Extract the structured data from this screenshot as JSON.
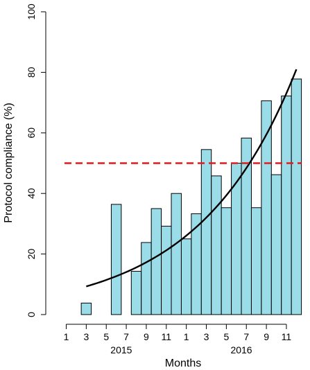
{
  "chart_data": {
    "type": "bar",
    "title": "",
    "xlabel": "Months",
    "ylabel": "Protocol compliance (%)",
    "ylim": [
      0,
      100
    ],
    "yticks": [
      0,
      20,
      40,
      60,
      80,
      100
    ],
    "months": [
      1,
      2,
      3,
      4,
      5,
      6,
      7,
      8,
      9,
      10,
      11,
      12,
      1,
      2,
      3,
      4,
      5,
      6,
      7,
      8,
      9,
      10,
      11,
      12
    ],
    "xtick_labels": [
      "1",
      "3",
      "5",
      "7",
      "9",
      "11",
      "1",
      "3",
      "5",
      "7",
      "9",
      "11"
    ],
    "year_labels": [
      "2015",
      "2016"
    ],
    "values": [
      0,
      0,
      3.8,
      0,
      0,
      36.4,
      0,
      14.3,
      23.8,
      35.0,
      29.2,
      40.0,
      25.0,
      33.3,
      54.5,
      45.8,
      35.3,
      50.0,
      58.3,
      35.3,
      70.6,
      46.2,
      72.2,
      77.8
    ],
    "threshold": 50,
    "trend": {
      "start_month": 3,
      "start_value": 9.3,
      "end_month": 24,
      "end_value": 81.0
    },
    "colors": {
      "bar_fill": "#9ADCE8",
      "bar_stroke": "#000000",
      "threshold_line": "#E41A1C",
      "trend_line": "#000000"
    },
    "grid": false,
    "legend": "none"
  }
}
